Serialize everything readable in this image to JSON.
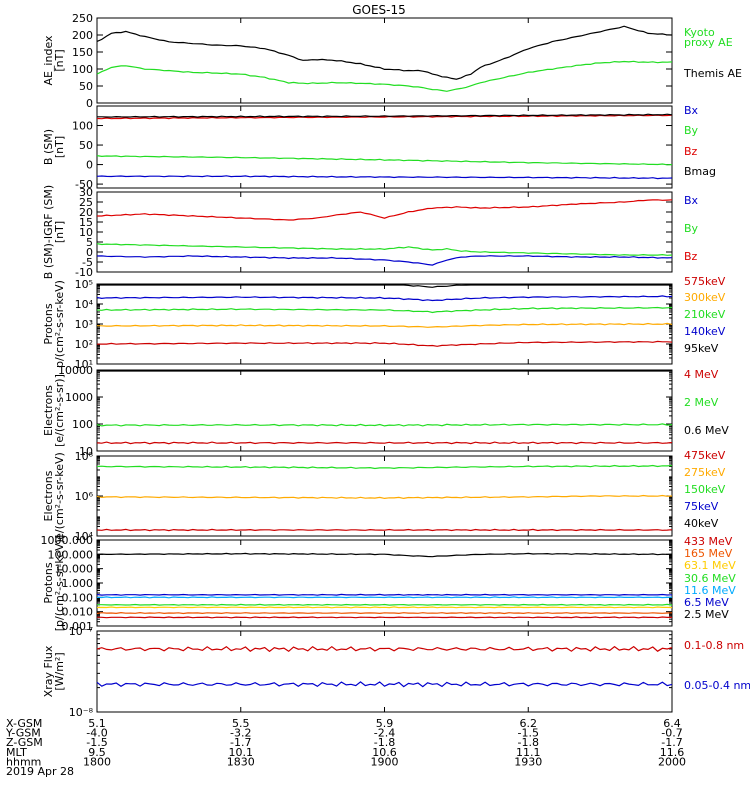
{
  "title": "GOES-15",
  "x_axis": {
    "row_labels": [
      "X-GSM",
      "Y-GSM",
      "Z-GSM",
      "MLT",
      "hhmm"
    ],
    "date": "2019 Apr 28",
    "columns": [
      [
        "5.1",
        "-4.0",
        "-1.5",
        "9.5",
        "1800"
      ],
      [
        "5.5",
        "-3.2",
        "-1.7",
        "10.1",
        "1830"
      ],
      [
        "5.9",
        "-2.4",
        "-1.8",
        "10.6",
        "1900"
      ],
      [
        "6.2",
        "-1.5",
        "-1.8",
        "11.1",
        "1930"
      ],
      [
        "6.4",
        "-0.7",
        "-1.7",
        "11.6",
        "2000"
      ]
    ]
  },
  "chart_data": [
    {
      "type": "line",
      "ylabel": [
        "AE_index",
        "[nT]"
      ],
      "scale": "linear",
      "ylim": [
        0,
        250
      ],
      "yticks": [
        "0",
        "50",
        "100",
        "150",
        "200",
        "250"
      ],
      "ytick_values": [
        0,
        50,
        100,
        150,
        200,
        250
      ],
      "legend": [
        {
          "name": "Kyoto",
          "color": "#22dd22"
        },
        {
          "name": "proxy AE",
          "color": "#22dd22"
        },
        {
          "name": "Themis AE",
          "color": "#000000"
        }
      ],
      "series": [
        {
          "name": "Kyoto proxy AE",
          "color": "#22dd22",
          "x": [
            1800,
            1803,
            1806,
            1810,
            1815,
            1820,
            1825,
            1830,
            1835,
            1840,
            1843,
            1846,
            1850,
            1855,
            1900,
            1905,
            1908,
            1910,
            1913,
            1915,
            1918,
            1920,
            1925,
            1930,
            1935,
            1940,
            1945,
            1950,
            1955,
            2000
          ],
          "y": [
            85,
            105,
            110,
            100,
            95,
            90,
            88,
            85,
            75,
            60,
            58,
            58,
            60,
            58,
            55,
            50,
            45,
            40,
            35,
            40,
            50,
            60,
            75,
            90,
            100,
            110,
            118,
            122,
            120,
            120
          ]
        },
        {
          "name": "Themis AE",
          "color": "#000000",
          "x": [
            1800,
            1803,
            1806,
            1810,
            1815,
            1820,
            1825,
            1830,
            1835,
            1840,
            1843,
            1846,
            1850,
            1855,
            1900,
            1905,
            1908,
            1910,
            1913,
            1915,
            1918,
            1920,
            1925,
            1930,
            1935,
            1940,
            1945,
            1950,
            1955,
            2000
          ],
          "y": [
            180,
            205,
            210,
            195,
            180,
            175,
            170,
            168,
            160,
            140,
            125,
            128,
            125,
            115,
            100,
            95,
            95,
            85,
            75,
            70,
            85,
            105,
            130,
            160,
            180,
            195,
            210,
            225,
            205,
            200
          ]
        }
      ]
    },
    {
      "type": "line",
      "ylabel": [
        "B (SM)",
        "[nT]"
      ],
      "scale": "linear",
      "ylim": [
        -60,
        150
      ],
      "yticks": [
        "-50",
        "0",
        "50",
        "100"
      ],
      "ytick_values": [
        -50,
        0,
        50,
        100
      ],
      "legend": [
        {
          "name": "Bx",
          "color": "#0000cc"
        },
        {
          "name": "By",
          "color": "#22dd22"
        },
        {
          "name": "Bz",
          "color": "#dd0000"
        },
        {
          "name": "Bmag",
          "color": "#000000"
        }
      ],
      "series": [
        {
          "name": "Bx",
          "color": "#0000cc",
          "x": [
            1800,
            1830,
            1900,
            1930,
            2000
          ],
          "y": [
            -30,
            -30,
            -32,
            -33,
            -35
          ]
        },
        {
          "name": "By",
          "color": "#22dd22",
          "x": [
            1800,
            1830,
            1900,
            1930,
            2000
          ],
          "y": [
            22,
            18,
            12,
            5,
            0
          ]
        },
        {
          "name": "Bz",
          "color": "#dd0000",
          "x": [
            1800,
            1830,
            1900,
            1930,
            2000
          ],
          "y": [
            118,
            120,
            122,
            124,
            126
          ]
        },
        {
          "name": "Bmag",
          "color": "#000000",
          "x": [
            1800,
            1830,
            1900,
            1930,
            2000
          ],
          "y": [
            122,
            123,
            124,
            126,
            128
          ]
        }
      ]
    },
    {
      "type": "line",
      "ylabel": [
        "B (SM)-IGRF (SM)",
        "[nT]"
      ],
      "scale": "linear",
      "ylim": [
        -10,
        30
      ],
      "yticks": [
        "-10",
        "-5",
        "0",
        "5",
        "10",
        "15",
        "20",
        "25",
        "30"
      ],
      "ytick_values": [
        -10,
        -5,
        0,
        5,
        10,
        15,
        20,
        25,
        30
      ],
      "legend": [
        {
          "name": "Bx",
          "color": "#0000cc"
        },
        {
          "name": "By",
          "color": "#22dd22"
        },
        {
          "name": "Bz",
          "color": "#dd0000"
        }
      ],
      "series": [
        {
          "name": "Bx",
          "color": "#0000cc",
          "x": [
            1800,
            1810,
            1820,
            1830,
            1840,
            1850,
            1900,
            1905,
            1910,
            1913,
            1916,
            1920,
            1930,
            1940,
            1950,
            2000
          ],
          "y": [
            -2,
            -2.5,
            -2,
            -2.5,
            -3,
            -3,
            -4,
            -5,
            -6.5,
            -4,
            -2.5,
            -2,
            -2,
            -2.5,
            -2.5,
            -3
          ]
        },
        {
          "name": "By",
          "color": "#22dd22",
          "x": [
            1800,
            1810,
            1820,
            1830,
            1840,
            1850,
            1900,
            1905,
            1910,
            1913,
            1916,
            1920,
            1930,
            1940,
            1950,
            2000
          ],
          "y": [
            4,
            3.5,
            3,
            2.5,
            2,
            1.5,
            1.5,
            2.5,
            1,
            1.5,
            0.5,
            0,
            -0.5,
            -1,
            -1.5,
            -1.5
          ]
        },
        {
          "name": "Bz",
          "color": "#dd0000",
          "x": [
            1800,
            1810,
            1820,
            1830,
            1840,
            1846,
            1850,
            1855,
            1900,
            1905,
            1910,
            1915,
            1920,
            1930,
            1940,
            1950,
            1955,
            2000
          ],
          "y": [
            18,
            19,
            18,
            17,
            16,
            17,
            18.5,
            20,
            17,
            20,
            22,
            22.5,
            22,
            22.5,
            24,
            25,
            26,
            26
          ]
        }
      ]
    },
    {
      "type": "line",
      "ylabel": [
        "Protons",
        "p/(cm²-s-sr-keV)"
      ],
      "scale": "log",
      "ylim": [
        1,
        3
      ],
      "yticks": [
        "10¹",
        "10²",
        "10³",
        "10⁴",
        "10⁵"
      ],
      "ytick_values": [
        10,
        100,
        1000,
        10000,
        100000
      ],
      "legend": [
        {
          "name": "575keV",
          "color": "#cc0000"
        },
        {
          "name": "300keV",
          "color": "#ffaa00"
        },
        {
          "name": "210keV",
          "color": "#22dd22"
        },
        {
          "name": "140keV",
          "color": "#0000cc"
        },
        {
          "name": "95keV",
          "color": "#000000"
        }
      ],
      "series": [
        {
          "name": "95keV",
          "color": "#000000",
          "x": [
            1800,
            1830,
            1900,
            1910,
            1920,
            1930,
            2000
          ],
          "y": [
            100000,
            110000,
            100000,
            70000,
            100000,
            120000,
            130000
          ]
        },
        {
          "name": "140keV",
          "color": "#0000cc",
          "x": [
            1800,
            1830,
            1900,
            1910,
            1920,
            1930,
            2000
          ],
          "y": [
            20000,
            22000,
            20000,
            15000,
            20000,
            22000,
            24000
          ]
        },
        {
          "name": "210keV",
          "color": "#22dd22",
          "x": [
            1800,
            1830,
            1900,
            1910,
            1920,
            1930,
            2000
          ],
          "y": [
            5000,
            5500,
            5000,
            4000,
            5000,
            6000,
            6500
          ]
        },
        {
          "name": "300keV",
          "color": "#ffaa00",
          "x": [
            1800,
            1830,
            1900,
            1910,
            1920,
            1930,
            2000
          ],
          "y": [
            800,
            850,
            800,
            700,
            850,
            950,
            1000
          ]
        },
        {
          "name": "575keV",
          "color": "#cc0000",
          "x": [
            1800,
            1830,
            1900,
            1910,
            1920,
            1930,
            2000
          ],
          "y": [
            100,
            110,
            110,
            80,
            100,
            120,
            130
          ]
        }
      ]
    },
    {
      "type": "line",
      "ylabel": [
        "Electrons",
        "[e/(cm²-s-sr)]"
      ],
      "scale": "log",
      "ylim": [
        10,
        10000
      ],
      "yticks": [
        "10",
        "100",
        "1000",
        "10000"
      ],
      "ytick_values": [
        10,
        100,
        1000,
        10000
      ],
      "legend": [
        {
          "name": "4 MeV",
          "color": "#cc0000"
        },
        {
          "name": "2 MeV",
          "color": "#22dd22"
        },
        {
          "name": "0.6 MeV",
          "color": "#000000"
        }
      ],
      "series": [
        {
          "name": "0.6 MeV",
          "color": "#000000",
          "x": [
            1800,
            1830,
            1900,
            1930,
            2000
          ],
          "y": [
            10000,
            10000,
            10000,
            10000,
            10000
          ]
        },
        {
          "name": "2 MeV",
          "color": "#22dd22",
          "x": [
            1800,
            1830,
            1900,
            1930,
            2000
          ],
          "y": [
            90,
            92,
            90,
            95,
            95
          ]
        },
        {
          "name": "4 MeV",
          "color": "#cc0000",
          "x": [
            1800,
            1830,
            1900,
            1930,
            2000
          ],
          "y": [
            20,
            20,
            20,
            20,
            20
          ]
        }
      ]
    },
    {
      "type": "line",
      "ylabel": [
        "Electrons",
        "e/(cm²-s-sr-keV)"
      ],
      "scale": "log",
      "ylim": [
        4,
        8
      ],
      "yticks": [
        "10⁴",
        "10⁶",
        "10⁸"
      ],
      "ytick_values": [
        10000,
        1000000,
        100000000
      ],
      "legend": [
        {
          "name": "475keV",
          "color": "#cc0000"
        },
        {
          "name": "275keV",
          "color": "#ffaa00"
        },
        {
          "name": "150keV",
          "color": "#22dd22"
        },
        {
          "name": "75keV",
          "color": "#0000cc"
        },
        {
          "name": "40keV",
          "color": "#000000"
        }
      ],
      "series": [
        {
          "name": "150keV",
          "color": "#22dd22",
          "x": [
            1800,
            1830,
            1900,
            1930,
            2000
          ],
          "y": [
            30000000,
            28000000,
            25000000,
            30000000,
            32000000
          ]
        },
        {
          "name": "275keV",
          "color": "#ffaa00",
          "x": [
            1800,
            1830,
            1900,
            1930,
            1945,
            2000
          ],
          "y": [
            900000,
            850000,
            800000,
            900000,
            1000000,
            1000000
          ]
        },
        {
          "name": "475keV",
          "color": "#cc0000",
          "x": [
            1800,
            1830,
            1900,
            1930,
            2000
          ],
          "y": [
            20000,
            20000,
            20000,
            20000,
            20000
          ]
        }
      ]
    },
    {
      "type": "line",
      "ylabel": [
        "Protons",
        "[p/(cm²-s-sr-keV)]"
      ],
      "scale": "log",
      "ylim": [
        0.001,
        1000
      ],
      "yticks": [
        "0.001",
        "0.010",
        "0.100",
        "1.000",
        "10.000",
        "100.000",
        "1000.000"
      ],
      "ytick_values": [
        0.001,
        0.01,
        0.1,
        1,
        10,
        100,
        1000
      ],
      "legend": [
        {
          "name": "433 MeV",
          "color": "#cc0000"
        },
        {
          "name": "165 MeV",
          "color": "#ee5500"
        },
        {
          "name": "63.1 MeV",
          "color": "#ffcc00"
        },
        {
          "name": "30.6 MeV",
          "color": "#22dd22"
        },
        {
          "name": "11.6 MeV",
          "color": "#00aaff"
        },
        {
          "name": "6.5 MeV",
          "color": "#0000cc"
        },
        {
          "name": "2.5 MeV",
          "color": "#000000"
        }
      ],
      "series": [
        {
          "name": "2.5 MeV",
          "color": "#000000",
          "x": [
            1800,
            1830,
            1900,
            1905,
            1910,
            1915,
            1920,
            1930,
            2000
          ],
          "y": [
            100,
            110,
            100,
            80,
            70,
            85,
            100,
            110,
            100
          ]
        },
        {
          "name": "6.5 MeV",
          "color": "#0000cc",
          "x": [
            1800,
            1830,
            1900,
            1930,
            2000
          ],
          "y": [
            0.15,
            0.15,
            0.15,
            0.15,
            0.15
          ]
        },
        {
          "name": "11.6 MeV",
          "color": "#00aaff",
          "x": [
            1800,
            1830,
            1900,
            1930,
            2000
          ],
          "y": [
            0.1,
            0.1,
            0.1,
            0.1,
            0.1
          ]
        },
        {
          "name": "30.6 MeV",
          "color": "#22dd22",
          "x": [
            1800,
            1830,
            1900,
            1930,
            2000
          ],
          "y": [
            0.03,
            0.03,
            0.03,
            0.03,
            0.03
          ]
        },
        {
          "name": "63.1 MeV",
          "color": "#ffcc00",
          "x": [
            1800,
            1830,
            1900,
            1930,
            2000
          ],
          "y": [
            0.02,
            0.02,
            0.02,
            0.02,
            0.02
          ]
        },
        {
          "name": "165 MeV",
          "color": "#ee5500",
          "x": [
            1800,
            1830,
            1900,
            1930,
            2000
          ],
          "y": [
            0.008,
            0.008,
            0.008,
            0.008,
            0.008
          ]
        },
        {
          "name": "433 MeV",
          "color": "#cc0000",
          "x": [
            1800,
            1830,
            1900,
            1930,
            2000
          ],
          "y": [
            0.004,
            0.004,
            0.004,
            0.004,
            0.004
          ]
        }
      ]
    },
    {
      "type": "line",
      "ylabel": [
        "Xray Flux",
        "[W/m²]"
      ],
      "scale": "log",
      "ylim": [
        1e-08,
        1e-07
      ],
      "yticks": [
        "10⁻⁸",
        "10⁻⁷"
      ],
      "ytick_values": [
        1e-08,
        1e-07
      ],
      "legend": [
        {
          "name": "0.1-0.8 nm",
          "color": "#cc0000"
        },
        {
          "name": "0.05-0.4 nm",
          "color": "#0000cc"
        }
      ],
      "series": [
        {
          "name": "0.1-0.8 nm",
          "color": "#cc0000",
          "x": [
            1800,
            1830,
            1900,
            1930,
            2000
          ],
          "y": 6e-08
        },
        {
          "name": "0.05-0.4 nm",
          "color": "#0000cc",
          "x": [
            1800,
            1830,
            1900,
            1930,
            2000
          ],
          "y": 2.2e-08
        }
      ]
    }
  ]
}
